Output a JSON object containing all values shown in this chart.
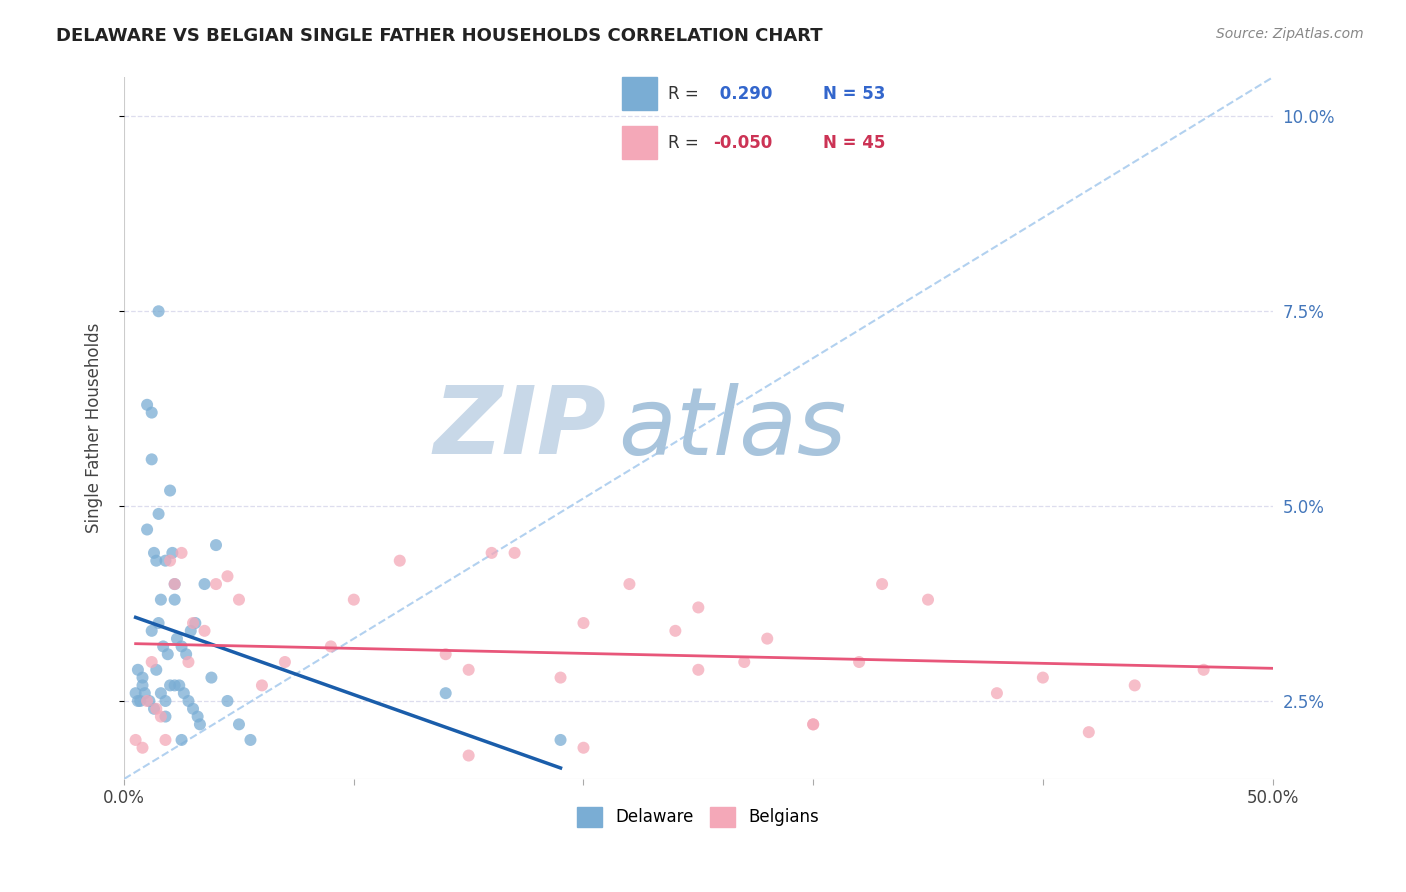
{
  "title": "DELAWARE VS BELGIAN SINGLE FATHER HOUSEHOLDS CORRELATION CHART",
  "source_text": "Source: ZipAtlas.com",
  "ylabel": "Single Father Households",
  "xlabel": "",
  "xlim": [
    0.0,
    0.5
  ],
  "ylim": [
    0.015,
    0.105
  ],
  "xticks": [
    0.0,
    0.1,
    0.2,
    0.3,
    0.4,
    0.5
  ],
  "xticklabels": [
    "0.0%",
    "",
    "",
    "",
    "",
    "50.0%"
  ],
  "yticks": [
    0.025,
    0.05,
    0.075,
    0.1
  ],
  "yticklabels": [
    "2.5%",
    "5.0%",
    "7.5%",
    "10.0%"
  ],
  "blue_R": 0.29,
  "blue_N": 53,
  "pink_R": -0.05,
  "pink_N": 45,
  "blue_color": "#7AADD4",
  "pink_color": "#F4A8B8",
  "blue_line_color": "#1A5DAA",
  "pink_line_color": "#E8567A",
  "ref_line_color": "#AACCEE",
  "watermark_zip": "ZIP",
  "watermark_atlas": "atlas",
  "watermark_zip_color": "#C8D8E8",
  "watermark_atlas_color": "#A8C4DC",
  "blue_dots_x": [
    0.005,
    0.006,
    0.007,
    0.008,
    0.009,
    0.01,
    0.01,
    0.011,
    0.012,
    0.012,
    0.013,
    0.013,
    0.014,
    0.014,
    0.015,
    0.015,
    0.016,
    0.016,
    0.017,
    0.018,
    0.018,
    0.019,
    0.02,
    0.02,
    0.021,
    0.022,
    0.022,
    0.023,
    0.024,
    0.025,
    0.026,
    0.027,
    0.028,
    0.029,
    0.03,
    0.031,
    0.032,
    0.033,
    0.035,
    0.038,
    0.04,
    0.045,
    0.05,
    0.055,
    0.012,
    0.015,
    0.018,
    0.022,
    0.025,
    0.008,
    0.006,
    0.14,
    0.19
  ],
  "blue_dots_y": [
    0.026,
    0.025,
    0.025,
    0.027,
    0.026,
    0.047,
    0.063,
    0.025,
    0.034,
    0.056,
    0.024,
    0.044,
    0.029,
    0.043,
    0.075,
    0.049,
    0.038,
    0.026,
    0.032,
    0.043,
    0.025,
    0.031,
    0.052,
    0.027,
    0.044,
    0.038,
    0.027,
    0.033,
    0.027,
    0.032,
    0.026,
    0.031,
    0.025,
    0.034,
    0.024,
    0.035,
    0.023,
    0.022,
    0.04,
    0.028,
    0.045,
    0.025,
    0.022,
    0.02,
    0.062,
    0.035,
    0.023,
    0.04,
    0.02,
    0.028,
    0.029,
    0.026,
    0.02
  ],
  "pink_dots_x": [
    0.005,
    0.008,
    0.01,
    0.012,
    0.014,
    0.016,
    0.018,
    0.02,
    0.022,
    0.025,
    0.028,
    0.03,
    0.035,
    0.04,
    0.045,
    0.05,
    0.06,
    0.07,
    0.09,
    0.1,
    0.12,
    0.14,
    0.15,
    0.16,
    0.17,
    0.19,
    0.2,
    0.22,
    0.24,
    0.25,
    0.27,
    0.28,
    0.3,
    0.32,
    0.33,
    0.35,
    0.38,
    0.4,
    0.42,
    0.44,
    0.47,
    0.3,
    0.25,
    0.2,
    0.15
  ],
  "pink_dots_y": [
    0.02,
    0.019,
    0.025,
    0.03,
    0.024,
    0.023,
    0.02,
    0.043,
    0.04,
    0.044,
    0.03,
    0.035,
    0.034,
    0.04,
    0.041,
    0.038,
    0.027,
    0.03,
    0.032,
    0.038,
    0.043,
    0.031,
    0.029,
    0.044,
    0.044,
    0.028,
    0.035,
    0.04,
    0.034,
    0.037,
    0.03,
    0.033,
    0.022,
    0.03,
    0.04,
    0.038,
    0.026,
    0.028,
    0.021,
    0.027,
    0.029,
    0.022,
    0.029,
    0.019,
    0.018
  ]
}
